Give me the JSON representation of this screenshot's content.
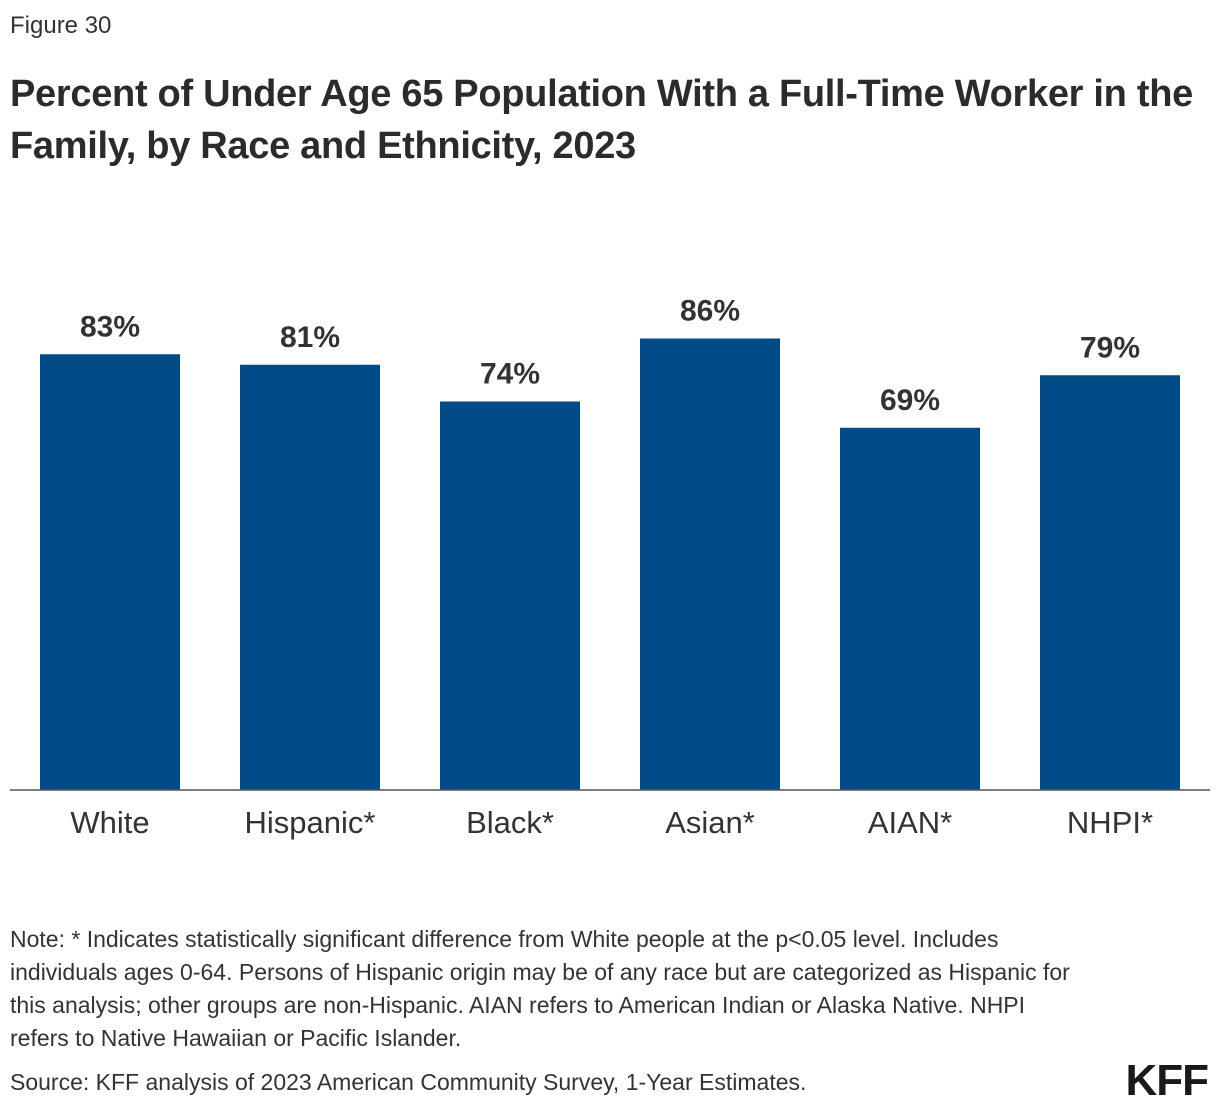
{
  "figure_label": "Figure 30",
  "title": "Percent of Under Age 65 Population With a Full-Time Worker in the Family, by Race and Ethnicity, 2023",
  "note": "Note: * Indicates statistically significant difference from White people at the p<0.05 level. Includes individuals ages 0-64. Persons of Hispanic origin may be of any race but are categorized as Hispanic for this analysis; other groups are non-Hispanic. AIAN refers to American Indian or Alaska Native. NHPI refers to Native Hawaiian or Pacific Islander.",
  "source": "Source: KFF analysis of 2023 American Community Survey, 1-Year Estimates.",
  "logo": "KFF",
  "colors": {
    "bar": "#004a87",
    "axis": "#555555"
  },
  "chart_data": {
    "type": "bar",
    "title": "Percent of Under Age 65 Population With a Full-Time Worker in the Family, by Race and Ethnicity, 2023",
    "categories": [
      "White",
      "Hispanic*",
      "Black*",
      "Asian*",
      "AIAN*",
      "NHPI*"
    ],
    "values": [
      83,
      81,
      74,
      86,
      69,
      79
    ],
    "value_labels": [
      "83%",
      "81%",
      "74%",
      "86%",
      "69%",
      "79%"
    ],
    "ylim": [
      0,
      100
    ],
    "grid": false,
    "legend": "none"
  }
}
